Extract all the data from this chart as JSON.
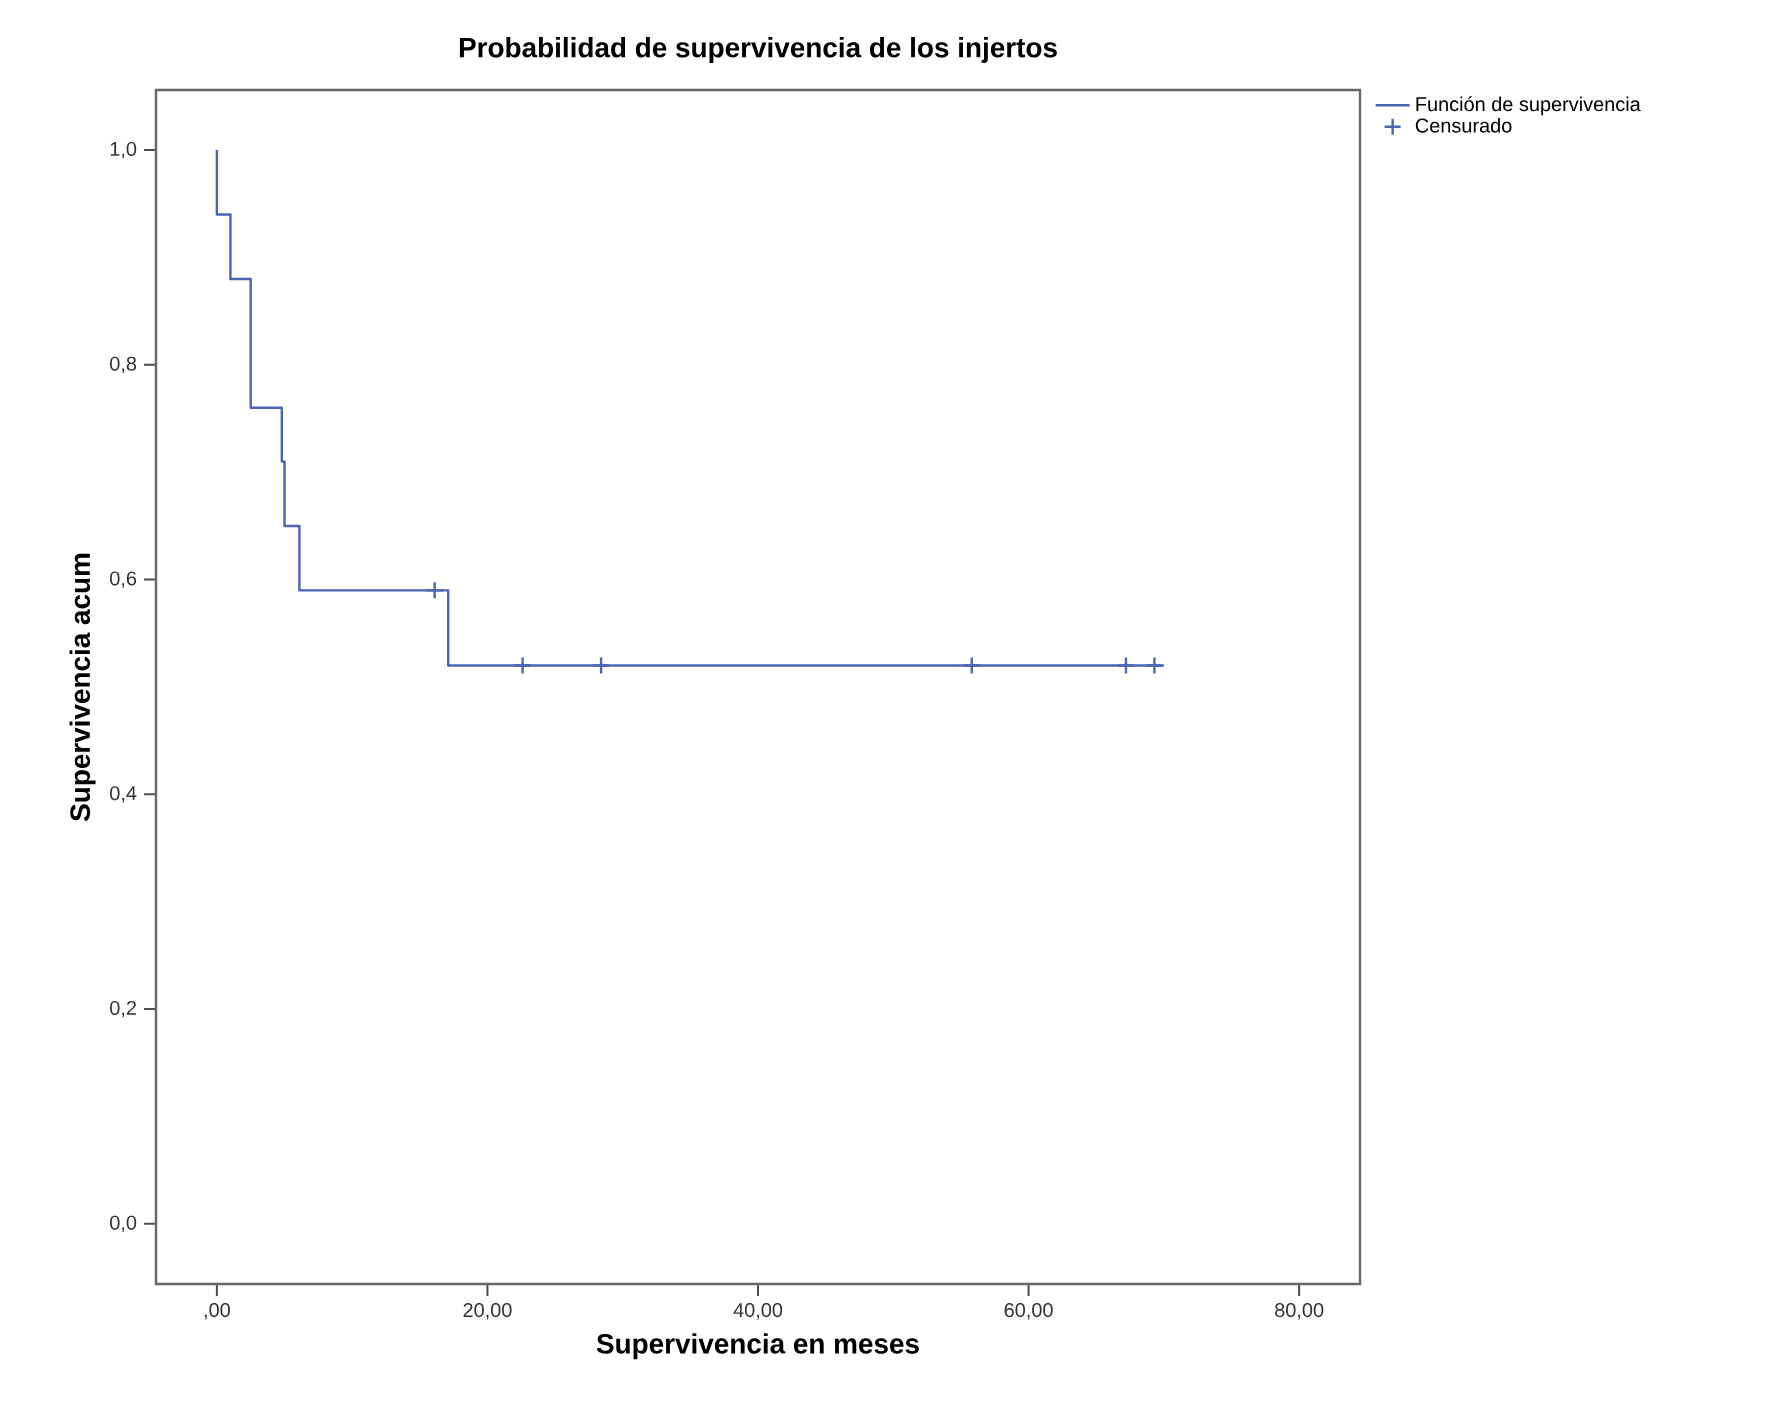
{
  "chart_data": {
    "type": "step",
    "title": "Probabilidad de supervivencia de los injertos",
    "xlabel": "Supervivencia en meses",
    "ylabel": "Supervivencia acum",
    "series": [
      {
        "name": "Función de supervivencia",
        "color": "#4a64b4",
        "x": [
          0,
          0,
          1.0,
          2.5,
          4.8,
          5.0,
          6.1,
          17.1,
          70
        ],
        "values": [
          1.0,
          0.94,
          0.88,
          0.76,
          0.71,
          0.65,
          0.59,
          0.52,
          0.52
        ],
        "marker": "none"
      },
      {
        "name": "Censurado",
        "type": "scatter",
        "color": "#4a64b4",
        "x": [
          16.1,
          22.6,
          28.4,
          55.8,
          67.2,
          69.3
        ],
        "values": [
          0.59,
          0.52,
          0.52,
          0.52,
          0.52,
          0.52
        ],
        "marker": "cross"
      }
    ],
    "xlim": [
      -4.5,
      84.5
    ],
    "ylim": [
      -0.056,
      1.056
    ],
    "xticks": [
      {
        "value": 0,
        "label": ",00"
      },
      {
        "value": 20,
        "label": "20,00"
      },
      {
        "value": 40,
        "label": "40,00"
      },
      {
        "value": 60,
        "label": "60,00"
      },
      {
        "value": 80,
        "label": "80,00"
      }
    ],
    "yticks": [
      {
        "value": 0,
        "label": "0,0"
      },
      {
        "value": 0.2,
        "label": "0,2"
      },
      {
        "value": 0.4,
        "label": "0,4"
      },
      {
        "value": 0.6,
        "label": "0,6"
      },
      {
        "value": 0.8,
        "label": "0,8"
      },
      {
        "value": 1.0,
        "label": "1,0"
      }
    ],
    "grid": false,
    "legend": "right"
  }
}
